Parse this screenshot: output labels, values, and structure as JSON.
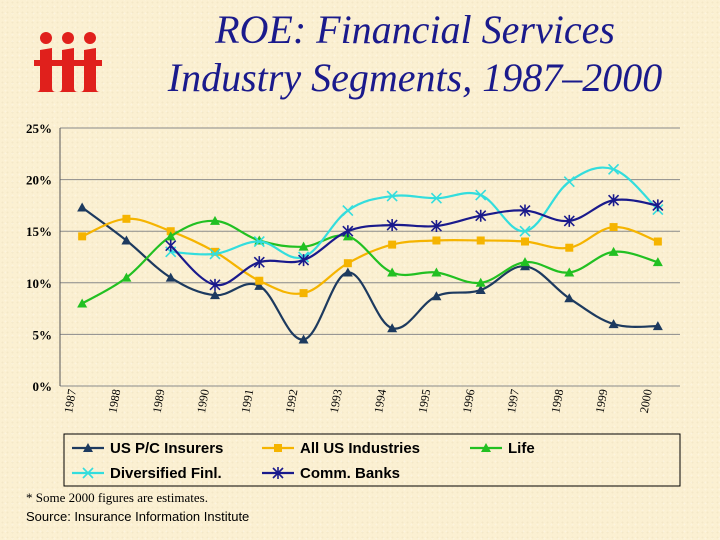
{
  "title_line1": "ROE: Financial Services",
  "title_line2": "Industry Segments, 1987–2000",
  "logo_text": "iii",
  "footnote": "* Some 2000 figures are estimates.",
  "source": "Source:  Insurance Information Institute",
  "colors": {
    "title": "#1a1a8c",
    "logo": "#e0201c",
    "grid": "#8a8a8a"
  },
  "chart_data": {
    "type": "line",
    "title": "",
    "xlabel": "",
    "ylabel": "",
    "x": [
      "1987",
      "1988",
      "1989",
      "1990",
      "1991",
      "1992",
      "1993",
      "1994",
      "1995",
      "1996",
      "1997",
      "1998",
      "1999",
      "2000"
    ],
    "ylim": [
      0,
      25
    ],
    "yticks": [
      "0%",
      "5%",
      "10%",
      "15%",
      "20%",
      "25%"
    ],
    "ytick_values": [
      0,
      5,
      10,
      15,
      20,
      25
    ],
    "grid": "horizontal",
    "legend_position": "bottom",
    "series": [
      {
        "name": "US P/C Insurers",
        "color": "#1d3a5f",
        "marker": "triangle",
        "values": [
          17.3,
          14.1,
          10.5,
          8.8,
          9.7,
          4.5,
          11.0,
          5.6,
          8.7,
          9.3,
          11.6,
          8.5,
          6.0,
          5.8
        ]
      },
      {
        "name": "All US Industries",
        "color": "#f5b400",
        "marker": "square",
        "values": [
          14.5,
          16.2,
          15.0,
          13.0,
          10.2,
          9.0,
          11.9,
          13.7,
          14.1,
          14.1,
          14.0,
          13.4,
          15.4,
          14.0
        ]
      },
      {
        "name": "Life",
        "color": "#22c022",
        "marker": "triangle",
        "values": [
          8.0,
          10.5,
          14.5,
          16.0,
          14.1,
          13.5,
          14.5,
          11.0,
          11.0,
          10.0,
          12.0,
          11.0,
          13.0,
          12.0
        ]
      },
      {
        "name": "Diversified Finl.",
        "color": "#33dddd",
        "marker": "x",
        "values": [
          null,
          null,
          13.0,
          12.8,
          14.0,
          12.5,
          17.0,
          18.4,
          18.2,
          18.5,
          15.0,
          19.8,
          21.0,
          17.1
        ]
      },
      {
        "name": "Comm. Banks",
        "color": "#1a1a8c",
        "marker": "star",
        "values": [
          null,
          null,
          13.6,
          9.8,
          12.0,
          12.2,
          15.0,
          15.6,
          15.5,
          16.5,
          17.0,
          16.0,
          18.0,
          17.5
        ]
      }
    ]
  }
}
